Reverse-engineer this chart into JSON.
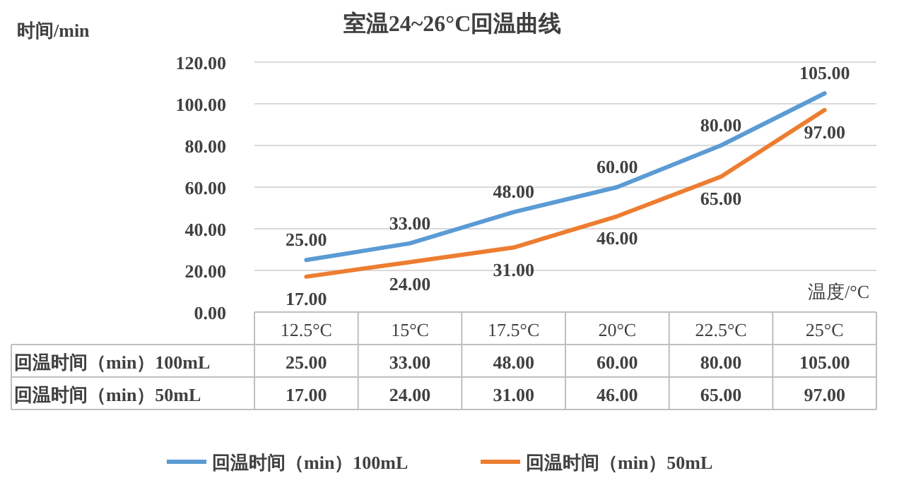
{
  "chart_data": {
    "type": "line",
    "title": "室温24~26°C回温曲线",
    "ylabel": "时间/min",
    "xlabel": "温度/°C",
    "categories": [
      "12.5°C",
      "15°C",
      "17.5°C",
      "20°C",
      "22.5°C",
      "25°C"
    ],
    "series": [
      {
        "name": "回温时间（min）100mL",
        "color": "#5b9bd5",
        "values": [
          25,
          33,
          48,
          60,
          80,
          105
        ],
        "value_labels": [
          "25.00",
          "33.00",
          "48.00",
          "60.00",
          "80.00",
          "105.00"
        ]
      },
      {
        "name": "回温时间（min）50mL",
        "color": "#ed7d31",
        "values": [
          17,
          24,
          31,
          46,
          65,
          97
        ],
        "value_labels": [
          "17.00",
          "24.00",
          "31.00",
          "46.00",
          "65.00",
          "97.00"
        ]
      }
    ],
    "ylim": [
      0,
      120
    ],
    "yticks": [
      {
        "value": 0,
        "label": "0.00"
      },
      {
        "value": 20,
        "label": "20.00"
      },
      {
        "value": 40,
        "label": "40.00"
      },
      {
        "value": 60,
        "label": "60.00"
      },
      {
        "value": 80,
        "label": "80.00"
      },
      {
        "value": 100,
        "label": "100.00"
      },
      {
        "value": 120,
        "label": "120.00"
      }
    ],
    "grid": "y",
    "legend": "bottom",
    "marker": "none",
    "line_style": "solid"
  }
}
